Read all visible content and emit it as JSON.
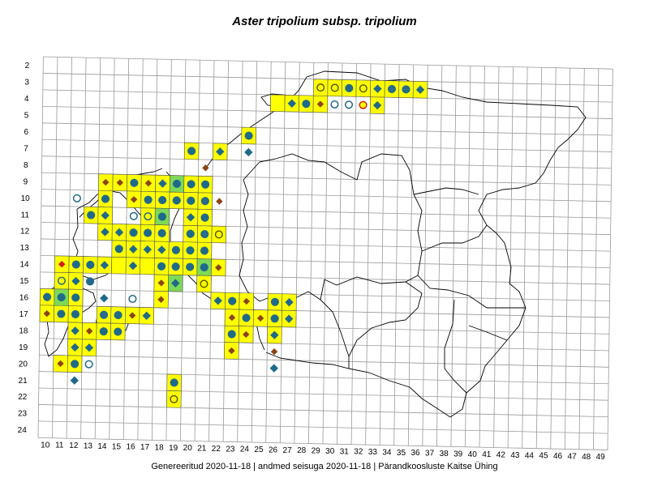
{
  "title": "Aster tripolium subsp. tripolium",
  "footer": "Genereeritud 2020-11-18  |  andmed seisuga 2020-11-18  |  Pärandkoosluste Kaitse Ühing",
  "colors": {
    "grid": "#9a9a9a",
    "border": "#000000",
    "cell_fill": "#ffff00",
    "cell_fill_green": "#7ed957",
    "cell_edge": "#555555",
    "blue": "#1f6a8a",
    "brown": "#8b4513",
    "red": "#d7191c"
  },
  "legend_symbols": {
    "diamond_blue": "blue diamond",
    "diamond_brown": "brown diamond",
    "diamond_red": "red diamond",
    "ring_blue": "blue ring",
    "ring_yellow": "yellow ring",
    "ring_red": "red ring",
    "cross": "cross"
  },
  "x_labels": [
    "10",
    "11",
    "12",
    "13",
    "14",
    "15",
    "16",
    "17",
    "18",
    "19",
    "20",
    "21",
    "22",
    "23",
    "24",
    "25",
    "26",
    "27",
    "28",
    "29",
    "30",
    "31",
    "32",
    "33",
    "34",
    "35",
    "36",
    "37",
    "38",
    "39",
    "40",
    "41",
    "42",
    "43",
    "44",
    "45",
    "46",
    "47",
    "48",
    "49"
  ],
  "y_labels": [
    "2",
    "3",
    "4",
    "5",
    "6",
    "7",
    "8",
    "9",
    "10",
    "11",
    "12",
    "13",
    "14",
    "15",
    "16",
    "17",
    "18",
    "19",
    "20",
    "21",
    "22",
    "23",
    "24"
  ],
  "occurrences": [
    {
      "c": 29,
      "r": 3,
      "f": "y",
      "s": [
        "ry"
      ]
    },
    {
      "c": 30,
      "r": 3,
      "f": "y",
      "s": [
        "ry"
      ]
    },
    {
      "c": 31,
      "r": 3,
      "f": "y",
      "s": [
        "db",
        "rb"
      ]
    },
    {
      "c": 32,
      "r": 3,
      "f": "y",
      "s": [
        "ry"
      ]
    },
    {
      "c": 33,
      "r": 3,
      "f": "y",
      "s": [
        "db"
      ]
    },
    {
      "c": 34,
      "r": 3,
      "f": "y",
      "s": [
        "db",
        "rb",
        "x"
      ]
    },
    {
      "c": 35,
      "r": 3,
      "f": "y",
      "s": [
        "db",
        "rb",
        "x"
      ]
    },
    {
      "c": 36,
      "r": 3,
      "f": "y",
      "s": [
        "db"
      ]
    },
    {
      "c": 26,
      "r": 4,
      "f": "y",
      "s": []
    },
    {
      "c": 27,
      "r": 4,
      "f": "y",
      "s": [
        "db"
      ]
    },
    {
      "c": 28,
      "r": 4,
      "f": "y",
      "s": [
        "db",
        "rb"
      ]
    },
    {
      "c": 29,
      "r": 4,
      "f": "y",
      "s": [
        "dn"
      ]
    },
    {
      "c": 30,
      "r": 4,
      "f": "",
      "s": [
        "rb"
      ]
    },
    {
      "c": 31,
      "r": 4,
      "f": "",
      "s": [
        "rb"
      ]
    },
    {
      "c": 32,
      "r": 4,
      "f": "",
      "s": [
        "rr"
      ]
    },
    {
      "c": 33,
      "r": 4,
      "f": "y",
      "s": [
        "db"
      ]
    },
    {
      "c": 24,
      "r": 6,
      "f": "y",
      "s": [
        "db",
        "rb"
      ]
    },
    {
      "c": 24,
      "r": 7,
      "f": "",
      "s": [
        "db"
      ]
    },
    {
      "c": 22,
      "r": 7,
      "f": "y",
      "s": [
        "db"
      ]
    },
    {
      "c": 20,
      "r": 7,
      "f": "y",
      "s": [
        "db",
        "rb"
      ]
    },
    {
      "c": 21,
      "r": 8,
      "f": "",
      "s": [
        "dn"
      ]
    },
    {
      "c": 14,
      "r": 9,
      "f": "y",
      "s": [
        "dn"
      ]
    },
    {
      "c": 15,
      "r": 9,
      "f": "y",
      "s": [
        "dn"
      ]
    },
    {
      "c": 16,
      "r": 9,
      "f": "y",
      "s": [
        "rb",
        "db"
      ]
    },
    {
      "c": 17,
      "r": 9,
      "f": "y",
      "s": [
        "dn"
      ]
    },
    {
      "c": 18,
      "r": 9,
      "f": "y",
      "s": [
        "db"
      ]
    },
    {
      "c": 19,
      "r": 9,
      "f": "g",
      "s": [
        "db",
        "rb"
      ]
    },
    {
      "c": 20,
      "r": 9,
      "f": "y",
      "s": [
        "db",
        "rb"
      ]
    },
    {
      "c": 21,
      "r": 9,
      "f": "y",
      "s": [
        "db",
        "rb"
      ]
    },
    {
      "c": 12,
      "r": 10,
      "f": "",
      "s": [
        "rb"
      ]
    },
    {
      "c": 14,
      "r": 10,
      "f": "y",
      "s": [
        "db",
        "rb"
      ]
    },
    {
      "c": 16,
      "r": 10,
      "f": "y",
      "s": [
        "dn"
      ]
    },
    {
      "c": 17,
      "r": 10,
      "f": "y",
      "s": [
        "db",
        "rb"
      ]
    },
    {
      "c": 18,
      "r": 10,
      "f": "y",
      "s": [
        "db",
        "rb"
      ]
    },
    {
      "c": 19,
      "r": 10,
      "f": "y",
      "s": [
        "db",
        "rb"
      ]
    },
    {
      "c": 20,
      "r": 10,
      "f": "y",
      "s": [
        "db",
        "rb"
      ]
    },
    {
      "c": 21,
      "r": 10,
      "f": "y",
      "s": [
        "db",
        "rb",
        "x"
      ]
    },
    {
      "c": 22,
      "r": 10,
      "f": "",
      "s": [
        "dn"
      ]
    },
    {
      "c": 13,
      "r": 11,
      "f": "y",
      "s": [
        "db",
        "rb"
      ]
    },
    {
      "c": 14,
      "r": 11,
      "f": "y",
      "s": [
        "db"
      ]
    },
    {
      "c": 16,
      "r": 11,
      "f": "",
      "s": [
        "rb"
      ]
    },
    {
      "c": 17,
      "r": 11,
      "f": "y",
      "s": [
        "rb"
      ]
    },
    {
      "c": 18,
      "r": 11,
      "f": "g",
      "s": [
        "db",
        "rb"
      ]
    },
    {
      "c": 20,
      "r": 11,
      "f": "y",
      "s": [
        "db"
      ]
    },
    {
      "c": 21,
      "r": 11,
      "f": "y",
      "s": [
        "db",
        "rb"
      ]
    },
    {
      "c": 14,
      "r": 12,
      "f": "y",
      "s": [
        "db"
      ]
    },
    {
      "c": 15,
      "r": 12,
      "f": "y",
      "s": [
        "db"
      ]
    },
    {
      "c": 16,
      "r": 12,
      "f": "y",
      "s": [
        "db",
        "rb"
      ]
    },
    {
      "c": 17,
      "r": 12,
      "f": "y",
      "s": [
        "db",
        "rb"
      ]
    },
    {
      "c": 18,
      "r": 12,
      "f": "y",
      "s": [
        "db",
        "rb"
      ]
    },
    {
      "c": 20,
      "r": 12,
      "f": "y",
      "s": [
        "db",
        "rb"
      ]
    },
    {
      "c": 21,
      "r": 12,
      "f": "y",
      "s": [
        "db",
        "rb",
        "x"
      ]
    },
    {
      "c": 22,
      "r": 12,
      "f": "y",
      "s": [
        "ry"
      ]
    },
    {
      "c": 15,
      "r": 13,
      "f": "y",
      "s": [
        "db",
        "rb"
      ]
    },
    {
      "c": 16,
      "r": 13,
      "f": "y",
      "s": [
        "db"
      ]
    },
    {
      "c": 17,
      "r": 13,
      "f": "y",
      "s": [
        "db"
      ]
    },
    {
      "c": 18,
      "r": 13,
      "f": "y",
      "s": [
        "db"
      ]
    },
    {
      "c": 19,
      "r": 13,
      "f": "y",
      "s": [
        "db",
        "rb"
      ]
    },
    {
      "c": 20,
      "r": 13,
      "f": "y",
      "s": [
        "db",
        "rb"
      ]
    },
    {
      "c": 21,
      "r": 13,
      "f": "y",
      "s": [
        "db",
        "rb"
      ]
    },
    {
      "c": 11,
      "r": 14,
      "f": "y",
      "s": [
        "dr"
      ]
    },
    {
      "c": 12,
      "r": 14,
      "f": "y",
      "s": [
        "db",
        "rb"
      ]
    },
    {
      "c": 13,
      "r": 14,
      "f": "y",
      "s": [
        "db",
        "rb"
      ]
    },
    {
      "c": 14,
      "r": 14,
      "f": "y",
      "s": [
        "db"
      ]
    },
    {
      "c": 15,
      "r": 14,
      "f": "y",
      "s": []
    },
    {
      "c": 16,
      "r": 14,
      "f": "y",
      "s": [
        "db"
      ]
    },
    {
      "c": 17,
      "r": 14,
      "f": "y",
      "s": []
    },
    {
      "c": 18,
      "r": 14,
      "f": "y",
      "s": [
        "db",
        "rb"
      ]
    },
    {
      "c": 19,
      "r": 14,
      "f": "y",
      "s": [
        "db",
        "rb"
      ]
    },
    {
      "c": 20,
      "r": 14,
      "f": "y",
      "s": [
        "db",
        "rb"
      ]
    },
    {
      "c": 21,
      "r": 14,
      "f": "g",
      "s": [
        "db",
        "rb"
      ]
    },
    {
      "c": 22,
      "r": 14,
      "f": "y",
      "s": [
        "dn"
      ]
    },
    {
      "c": 11,
      "r": 15,
      "f": "y",
      "s": [
        "rb"
      ]
    },
    {
      "c": 12,
      "r": 15,
      "f": "y",
      "s": [
        "db"
      ]
    },
    {
      "c": 13,
      "r": 15,
      "f": "",
      "s": [
        "db",
        "rb"
      ]
    },
    {
      "c": 18,
      "r": 15,
      "f": "y",
      "s": [
        "dn"
      ]
    },
    {
      "c": 19,
      "r": 15,
      "f": "g",
      "s": [
        "db"
      ]
    },
    {
      "c": 21,
      "r": 15,
      "f": "y",
      "s": [
        "ry"
      ]
    },
    {
      "c": 10,
      "r": 16,
      "f": "y",
      "s": [
        "db",
        "rb"
      ]
    },
    {
      "c": 11,
      "r": 16,
      "f": "g",
      "s": [
        "db",
        "rb"
      ]
    },
    {
      "c": 12,
      "r": 16,
      "f": "y",
      "s": [
        "db",
        "rb"
      ]
    },
    {
      "c": 14,
      "r": 16,
      "f": "",
      "s": [
        "db"
      ]
    },
    {
      "c": 16,
      "r": 16,
      "f": "",
      "s": [
        "rb"
      ]
    },
    {
      "c": 18,
      "r": 16,
      "f": "y",
      "s": [
        "dn"
      ]
    },
    {
      "c": 22,
      "r": 16,
      "f": "y",
      "s": [
        "db"
      ]
    },
    {
      "c": 23,
      "r": 16,
      "f": "y",
      "s": [
        "db",
        "rb"
      ]
    },
    {
      "c": 24,
      "r": 16,
      "f": "y",
      "s": [
        "dn"
      ]
    },
    {
      "c": 26,
      "r": 16,
      "f": "y",
      "s": [
        "db",
        "rb"
      ]
    },
    {
      "c": 27,
      "r": 16,
      "f": "y",
      "s": [
        "db"
      ]
    },
    {
      "c": 10,
      "r": 17,
      "f": "y",
      "s": [
        "dn"
      ]
    },
    {
      "c": 11,
      "r": 17,
      "f": "y",
      "s": [
        "db",
        "rb"
      ]
    },
    {
      "c": 12,
      "r": 17,
      "f": "y",
      "s": [
        "db",
        "rb"
      ]
    },
    {
      "c": 14,
      "r": 17,
      "f": "y",
      "s": [
        "db",
        "rb",
        "x"
      ]
    },
    {
      "c": 15,
      "r": 17,
      "f": "y",
      "s": [
        "db",
        "rb"
      ]
    },
    {
      "c": 16,
      "r": 17,
      "f": "y",
      "s": [
        "dn"
      ]
    },
    {
      "c": 17,
      "r": 17,
      "f": "y",
      "s": [
        "db"
      ]
    },
    {
      "c": 23,
      "r": 17,
      "f": "y",
      "s": [
        "dn"
      ]
    },
    {
      "c": 24,
      "r": 17,
      "f": "y",
      "s": [
        "db",
        "rb"
      ]
    },
    {
      "c": 25,
      "r": 17,
      "f": "y",
      "s": [
        "dn"
      ]
    },
    {
      "c": 26,
      "r": 17,
      "f": "y",
      "s": [
        "db",
        "rb"
      ]
    },
    {
      "c": 27,
      "r": 17,
      "f": "y",
      "s": [
        "db"
      ]
    },
    {
      "c": 12,
      "r": 18,
      "f": "y",
      "s": [
        "db"
      ]
    },
    {
      "c": 13,
      "r": 18,
      "f": "y",
      "s": [
        "dn"
      ]
    },
    {
      "c": 14,
      "r": 18,
      "f": "y",
      "s": [
        "db",
        "rb"
      ]
    },
    {
      "c": 15,
      "r": 18,
      "f": "y",
      "s": [
        "db",
        "rb"
      ]
    },
    {
      "c": 23,
      "r": 18,
      "f": "y",
      "s": [
        "db",
        "rb"
      ]
    },
    {
      "c": 24,
      "r": 18,
      "f": "y",
      "s": [
        "dn"
      ]
    },
    {
      "c": 26,
      "r": 18,
      "f": "y",
      "s": [
        "db"
      ]
    },
    {
      "c": 12,
      "r": 19,
      "f": "y",
      "s": [
        "db"
      ]
    },
    {
      "c": 13,
      "r": 19,
      "f": "y",
      "s": [
        "db"
      ]
    },
    {
      "c": 23,
      "r": 19,
      "f": "y",
      "s": [
        "dn"
      ]
    },
    {
      "c": 26,
      "r": 19,
      "f": "",
      "s": [
        "dn"
      ]
    },
    {
      "c": 11,
      "r": 20,
      "f": "y",
      "s": [
        "dn"
      ]
    },
    {
      "c": 12,
      "r": 20,
      "f": "y",
      "s": [
        "db",
        "rb"
      ]
    },
    {
      "c": 13,
      "r": 20,
      "f": "",
      "s": [
        "rb"
      ]
    },
    {
      "c": 26,
      "r": 20,
      "f": "",
      "s": [
        "db"
      ]
    },
    {
      "c": 12,
      "r": 21,
      "f": "",
      "s": [
        "db"
      ]
    },
    {
      "c": 19,
      "r": 21,
      "f": "y",
      "s": [
        "db",
        "rb"
      ]
    },
    {
      "c": 19,
      "r": 22,
      "f": "y",
      "s": [
        "ry"
      ]
    }
  ]
}
